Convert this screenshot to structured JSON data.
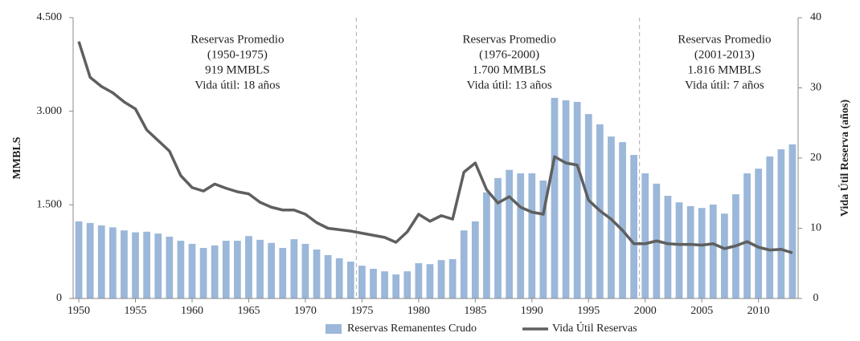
{
  "chart_data": {
    "type": "bar_line",
    "x": [
      1950,
      1951,
      1952,
      1953,
      1954,
      1955,
      1956,
      1957,
      1958,
      1959,
      1960,
      1961,
      1962,
      1963,
      1964,
      1965,
      1966,
      1967,
      1968,
      1969,
      1970,
      1971,
      1972,
      1973,
      1974,
      1975,
      1976,
      1977,
      1978,
      1979,
      1980,
      1981,
      1982,
      1983,
      1984,
      1985,
      1986,
      1987,
      1988,
      1989,
      1990,
      1991,
      1992,
      1993,
      1994,
      1995,
      1996,
      1997,
      1998,
      1999,
      2000,
      2001,
      2002,
      2003,
      2004,
      2005,
      2006,
      2007,
      2008,
      2009,
      2010,
      2011,
      2012,
      2013
    ],
    "series": [
      {
        "name": "Reservas Remanentes Crudo",
        "color": "#9bb7d9",
        "kind": "bar",
        "values": [
          1235,
          1210,
          1170,
          1140,
          1090,
          1060,
          1070,
          1040,
          990,
          925,
          875,
          810,
          850,
          925,
          925,
          1000,
          940,
          890,
          810,
          950,
          875,
          785,
          695,
          645,
          590,
          525,
          475,
          435,
          385,
          435,
          565,
          550,
          615,
          630,
          1090,
          1235,
          1700,
          1930,
          2060,
          2005,
          2005,
          1890,
          3215,
          3175,
          3150,
          2955,
          2790,
          2595,
          2505,
          2300,
          2005,
          1840,
          1645,
          1540,
          1480,
          1450,
          1505,
          1360,
          1670,
          2005,
          2080,
          2275,
          2390,
          2470
        ]
      },
      {
        "name": "Vida Útil Reservas",
        "color": "#5f5f5f",
        "kind": "line",
        "axis": "y2",
        "values": [
          36.6,
          31.5,
          30.2,
          29.3,
          28.0,
          27.0,
          24.0,
          22.5,
          21.0,
          17.5,
          15.8,
          15.3,
          16.3,
          15.7,
          15.2,
          14.9,
          13.7,
          13.0,
          12.6,
          12.6,
          12.0,
          10.8,
          10.0,
          9.8,
          9.6,
          9.3,
          9.0,
          8.7,
          8.0,
          9.5,
          12.0,
          11.0,
          11.8,
          11.3,
          18.0,
          19.3,
          15.5,
          13.6,
          14.5,
          13.0,
          12.3,
          12.0,
          20.2,
          19.3,
          19.0,
          14.0,
          12.5,
          11.3,
          9.7,
          7.8,
          7.8,
          8.2,
          7.8,
          7.7,
          7.7,
          7.6,
          7.8,
          7.1,
          7.5,
          8.1,
          7.3,
          6.9,
          7.0,
          6.5
        ]
      }
    ],
    "xlim": [
      1949.5,
      2013.5
    ],
    "xticks": [
      1950,
      1955,
      1960,
      1965,
      1970,
      1975,
      1980,
      1985,
      1990,
      1995,
      2000,
      2005,
      2010
    ],
    "ylim": [
      0,
      4500
    ],
    "yticks": [
      {
        "value": 0,
        "label": "0"
      },
      {
        "value": 1500,
        "label": "1.500"
      },
      {
        "value": 3000,
        "label": "3.000"
      },
      {
        "value": 4500,
        "label": "4.500"
      }
    ],
    "y2lim": [
      0,
      40
    ],
    "y2ticks": [
      0,
      10,
      20,
      30,
      40
    ],
    "ylabel": "MMBLS",
    "y2label": "Vida Útil Reserva (años)",
    "dividers": [
      1974.5,
      1999.5
    ],
    "annotations": [
      {
        "x": 1964,
        "lines": [
          "Reservas Promedio",
          "(1950-1975)",
          "919 MMBLS",
          "Vida útil: 18 años"
        ]
      },
      {
        "x": 1988,
        "lines": [
          "Reservas Promedio",
          "(1976-2000)",
          "1.700 MMBLS",
          "Vida útil: 13 años"
        ]
      },
      {
        "x": 2007,
        "lines": [
          "Reservas Promedio",
          "(2001-2013)",
          "1.816 MMBLS",
          "Vida útil: 7 años"
        ]
      }
    ],
    "legend": "bottom"
  }
}
